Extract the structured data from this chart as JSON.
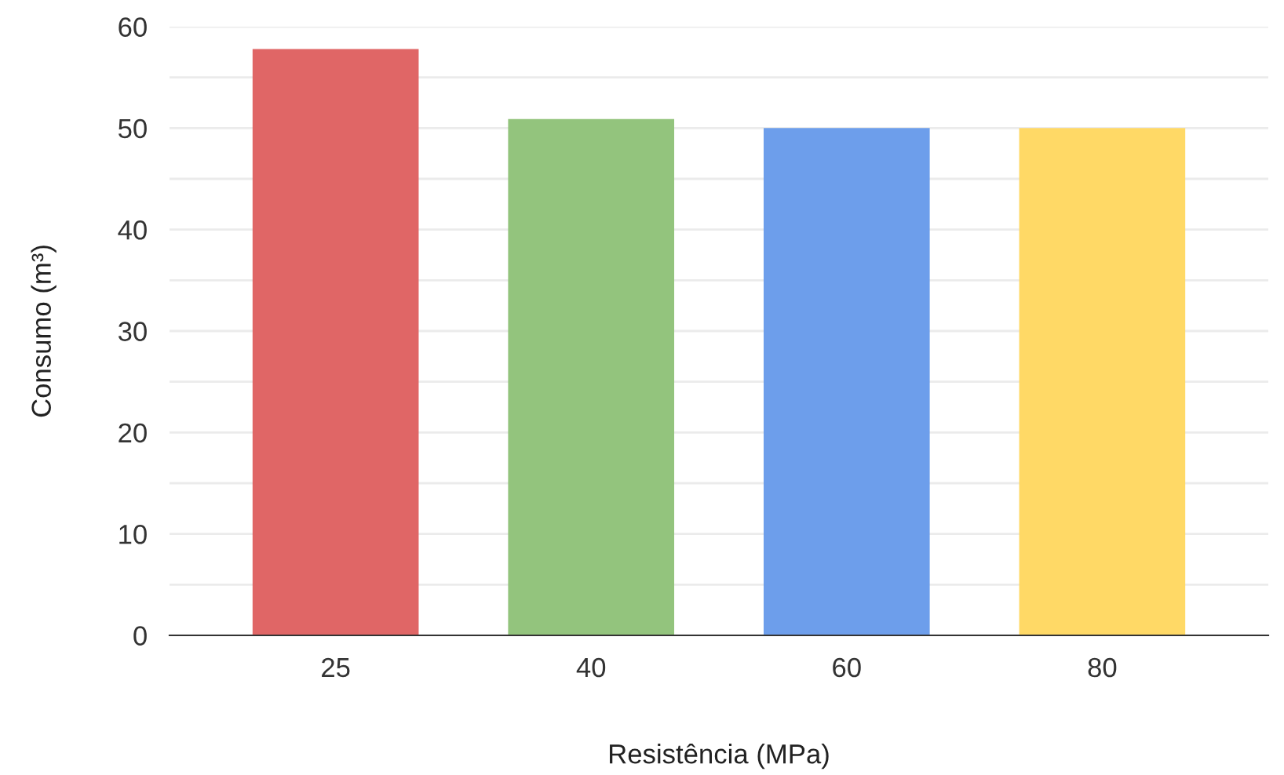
{
  "chart_data": {
    "type": "bar",
    "xlabel": "Resistência (MPa)",
    "ylabel": "Consumo (m³)",
    "categories": [
      "25",
      "40",
      "60",
      "80"
    ],
    "values": [
      57.8,
      50.9,
      50,
      50
    ],
    "colors": [
      "#e06666",
      "#93c47d",
      "#6d9eeb",
      "#ffd966"
    ],
    "ylim": [
      0,
      60
    ],
    "yticks": [
      0,
      {
        "value": 5,
        "label": null
      },
      10,
      {
        "value": 15,
        "label": null
      },
      20,
      {
        "value": 25,
        "label": null
      },
      30,
      {
        "value": 35,
        "label": null
      },
      40,
      {
        "value": 45,
        "label": null
      },
      50,
      {
        "value": 55,
        "label": null
      },
      60
    ],
    "grid": "y"
  }
}
